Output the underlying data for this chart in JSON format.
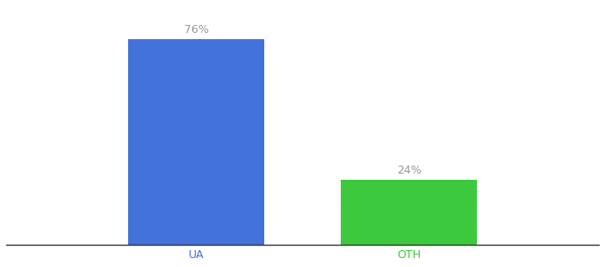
{
  "categories": [
    "UA",
    "OTH"
  ],
  "values": [
    76,
    24
  ],
  "bar_colors": [
    "#4472db",
    "#3dc93d"
  ],
  "label_color": "#999999",
  "title_fontsize": 10,
  "bar_label_fontsize": 9,
  "tick_fontsize": 9,
  "ylim": [
    0,
    88
  ],
  "bar_width": 0.18,
  "background_color": "#ffffff",
  "tick_colors": [
    "#4472db",
    "#3dc93d"
  ],
  "x_positions": [
    0.35,
    0.63
  ]
}
